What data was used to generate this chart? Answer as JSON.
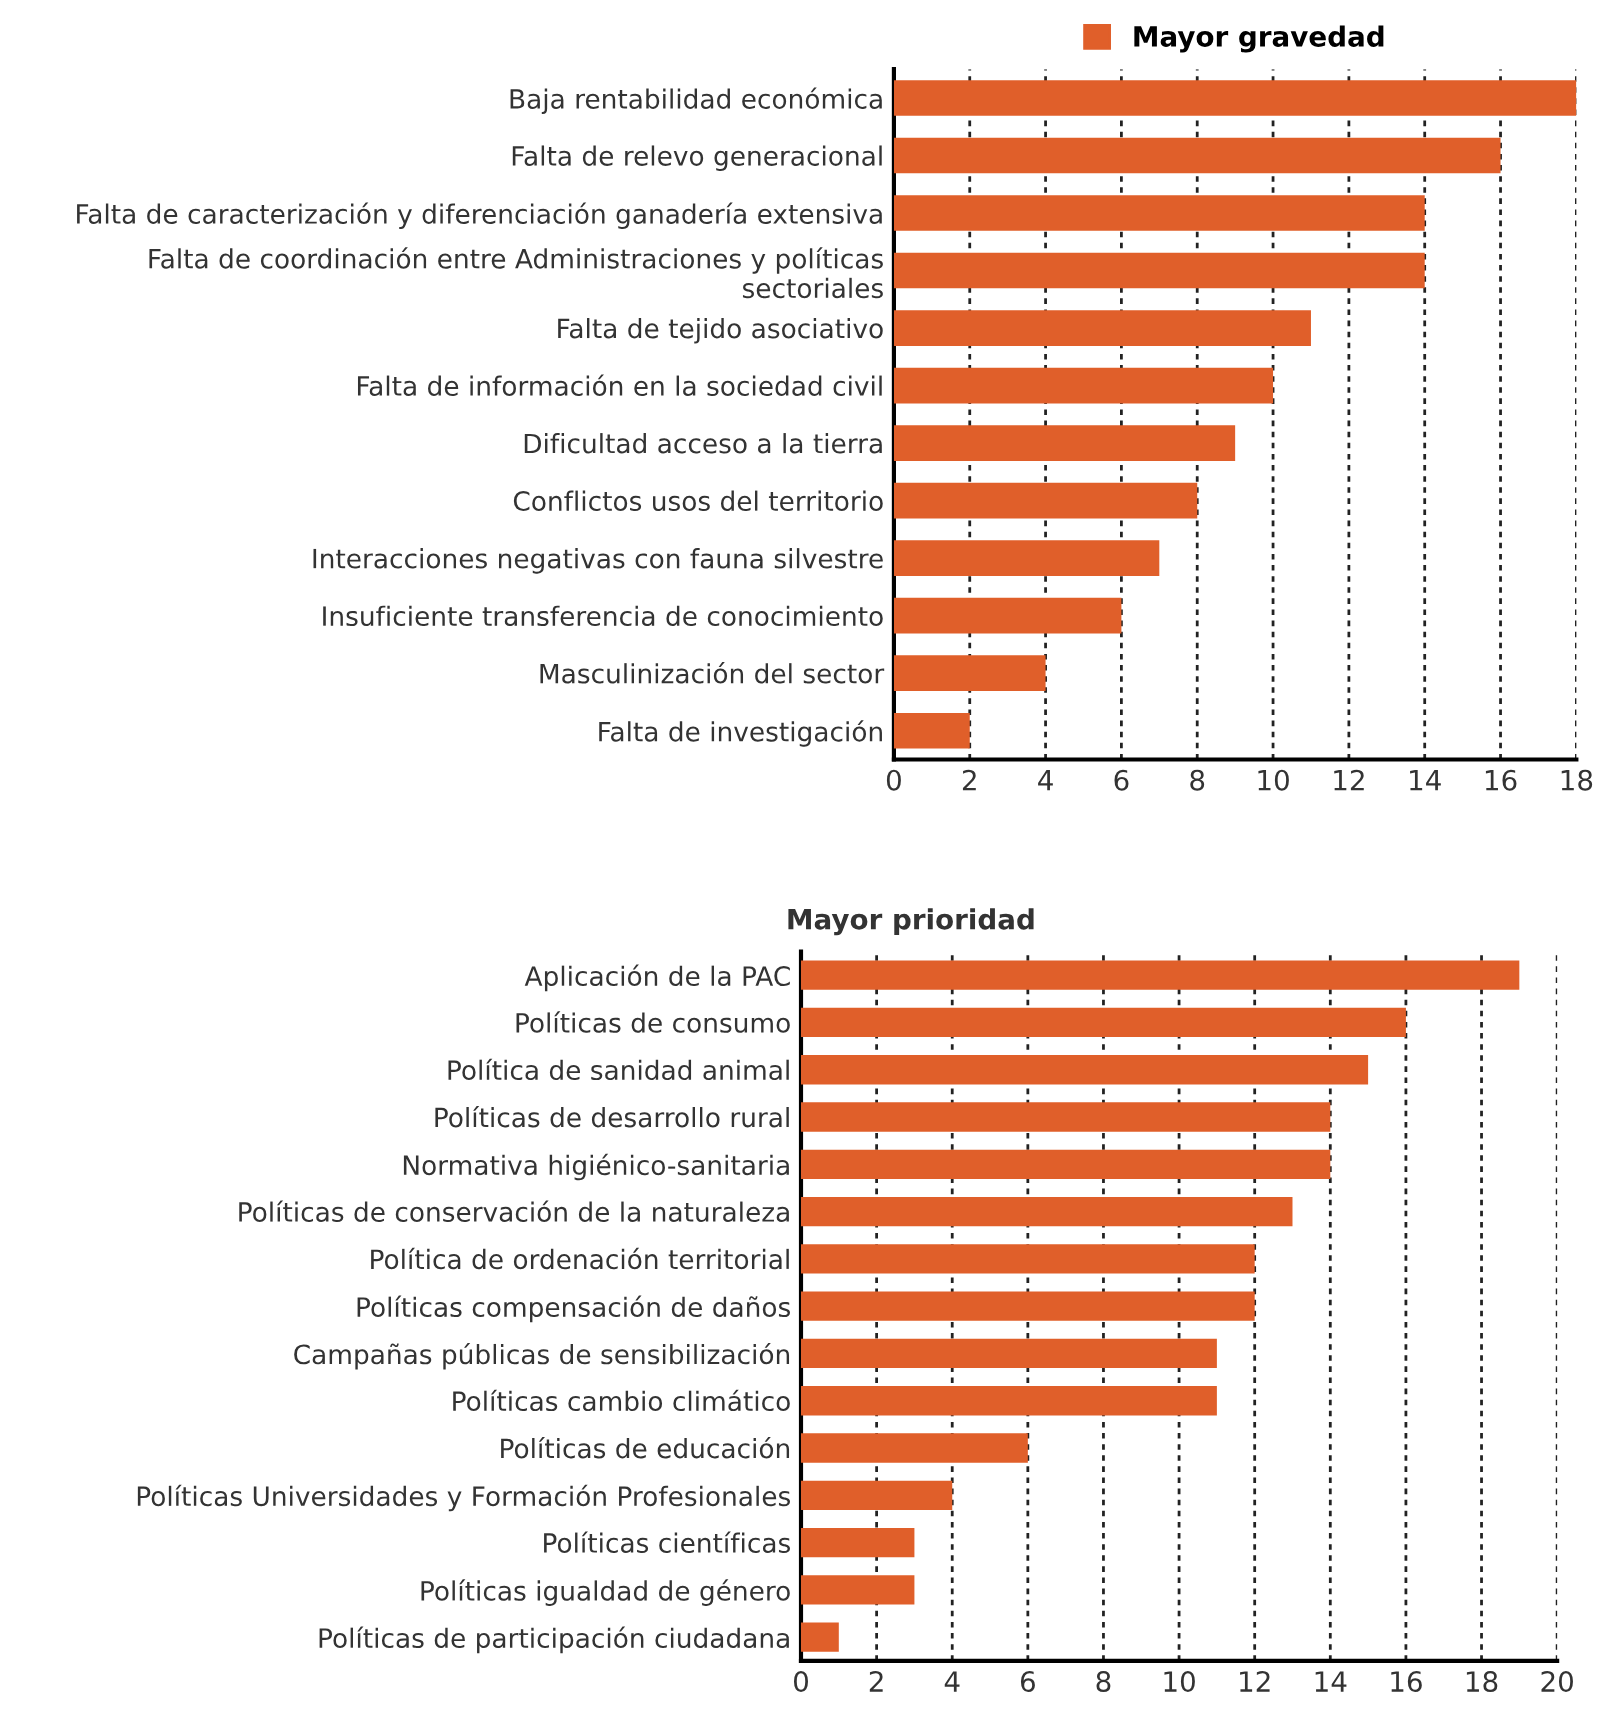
{
  "chart_data": [
    {
      "type": "bar",
      "orientation": "horizontal",
      "categories": [
        "Baja rentabilidad económica",
        "Falta de relevo generacional",
        "Falta de caracterización y diferenciación ganadería extensiva",
        "Falta de coordinación entre Administraciones y políticas\nsectoriales",
        "Falta de tejido asociativo",
        "Falta de información en la sociedad civil",
        "Dificultad acceso a la tierra",
        "Conflictos usos del territorio",
        "Interacciones negativas con fauna silvestre",
        "Insuficiente transferencia de conocimiento",
        "Masculinización del sector",
        "Falta de investigación"
      ],
      "series": [
        {
          "name": "Mayor gravedad",
          "color": "#e05f2a",
          "values": [
            18,
            16,
            14,
            14,
            11,
            10,
            9,
            8,
            7,
            6,
            4,
            2
          ]
        }
      ],
      "xlim": [
        0,
        18
      ],
      "xticks": [
        0,
        2,
        4,
        6,
        8,
        10,
        12,
        14,
        16,
        18
      ],
      "grid": "x",
      "legend": "top"
    },
    {
      "type": "bar",
      "orientation": "horizontal",
      "title": "Mayor prioridad",
      "categories": [
        "Aplicación de la PAC",
        "Políticas de consumo",
        "Política de sanidad animal",
        "Políticas de desarrollo rural",
        "Normativa higiénico-sanitaria",
        "Políticas de conservación de la naturaleza",
        "Política de ordenación territorial",
        "Políticas compensación de daños",
        "Campañas públicas de sensibilización",
        "Políticas cambio climático",
        "Políticas de educación",
        "Políticas Universidades y Formación Profesionales",
        "Políticas científicas",
        "Políticas igualdad de género",
        "Políticas de participación ciudadana"
      ],
      "series": [
        {
          "color": "#e05f2a",
          "values": [
            19,
            16,
            15,
            14,
            14,
            13,
            12,
            12,
            11,
            11,
            6,
            4,
            3,
            3,
            1
          ]
        }
      ],
      "xlim": [
        0,
        20
      ],
      "xticks": [
        0,
        2,
        4,
        6,
        8,
        10,
        12,
        14,
        16,
        18,
        20
      ],
      "grid": "x"
    }
  ]
}
